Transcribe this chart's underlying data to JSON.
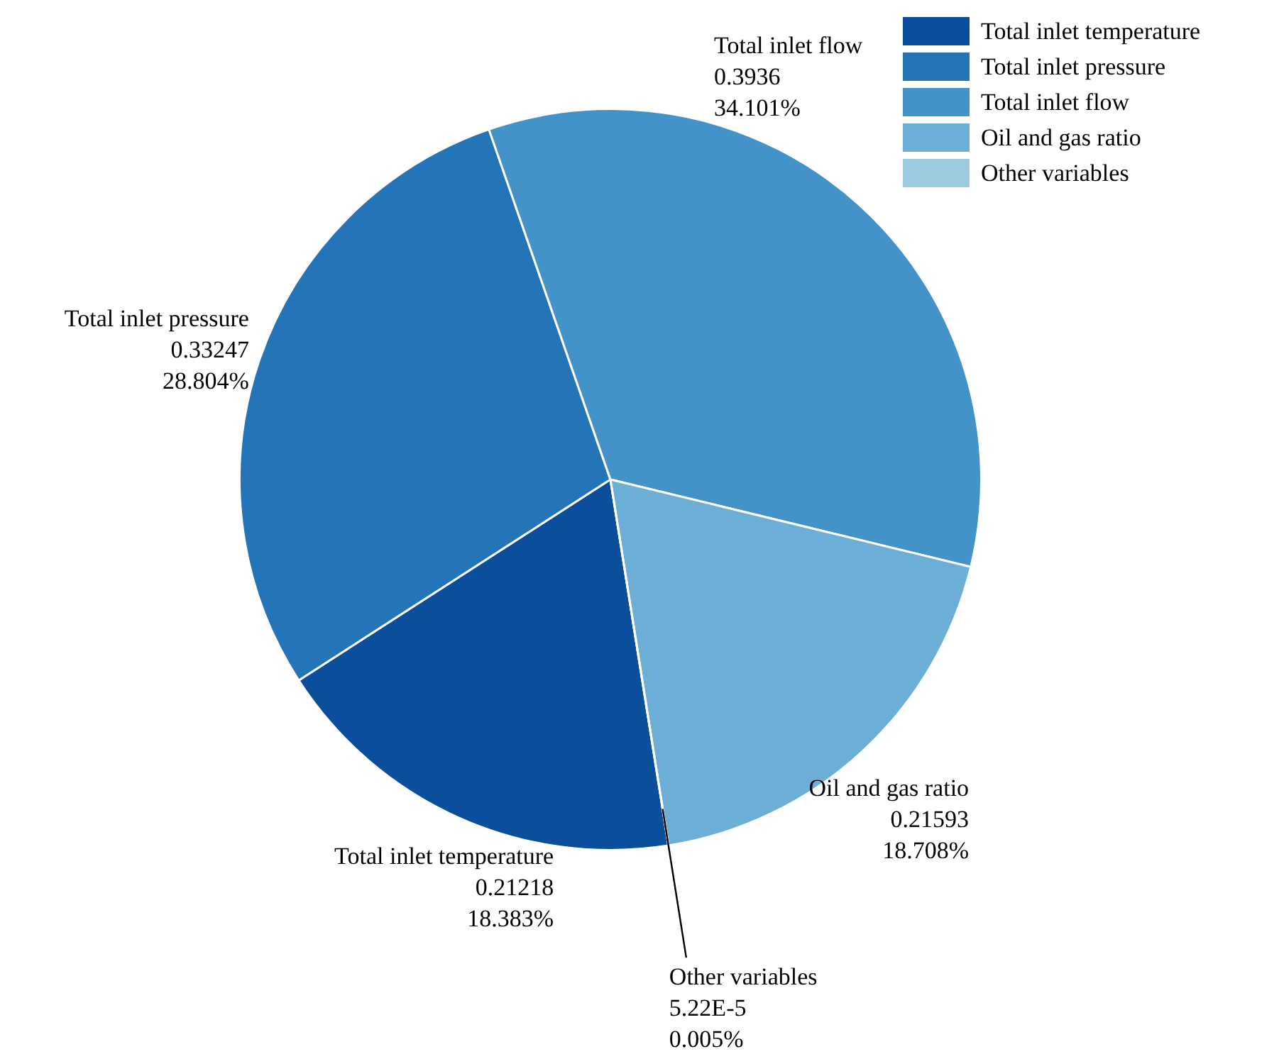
{
  "chart_data": {
    "type": "pie",
    "categories": [
      "Total inlet temperature",
      "Total inlet pressure",
      "Total inlet flow",
      "Oil and gas ratio",
      "Other variables"
    ],
    "values": [
      0.21218,
      0.33247,
      0.3936,
      0.21593,
      5.22e-05
    ],
    "value_labels": [
      "0.21218\n18.383%",
      "0.33247\n28.804%",
      "0.3936\n34.101%",
      "0.21593\n18.708%",
      "5.22E-5\n0.005%"
    ],
    "colors": [
      "#0b4f9c",
      "#2474b8",
      "#4393c8",
      "#6baed6",
      "#9ecae1"
    ],
    "legend": "top right"
  }
}
